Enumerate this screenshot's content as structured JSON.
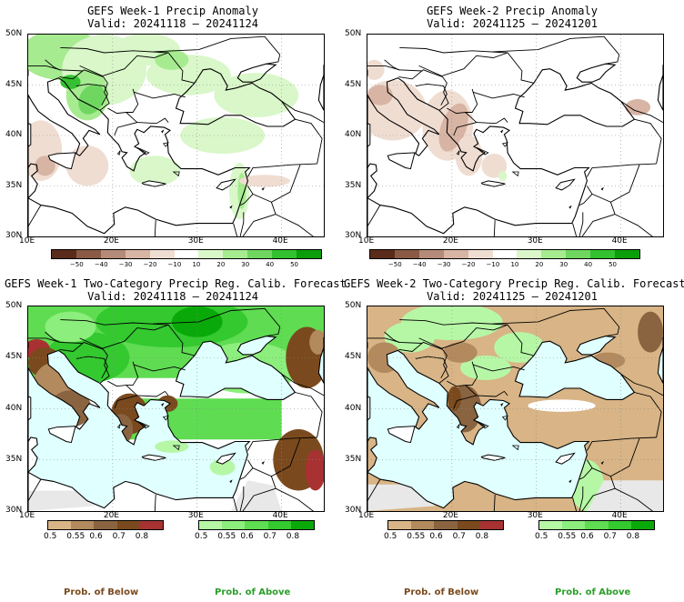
{
  "panels": [
    {
      "id": "p1",
      "title": "GEFS Week-1 Precip Anomaly",
      "valid": "Valid: 20241118 – 20241124",
      "kind": "anom"
    },
    {
      "id": "p2",
      "title": "GEFS Week-2 Precip Anomaly",
      "valid": "Valid: 20241125 – 20241201",
      "kind": "anom"
    },
    {
      "id": "p3",
      "title": "GEFS Week-1 Two-Category Precip Reg. Calib. Forecast",
      "valid": "Valid: 20241118 – 20241124",
      "kind": "prob"
    },
    {
      "id": "p4",
      "title": "GEFS Week-2 Two-Category Precip Reg. Calib. Forecast",
      "valid": "Valid: 20241125 – 20241201",
      "kind": "prob"
    }
  ],
  "axes": {
    "lat_labels": [
      "50N",
      "45N",
      "40N",
      "35N",
      "30N"
    ],
    "lon_labels": [
      "10E",
      "20E",
      "30E",
      "40E"
    ]
  },
  "anom_colorbar": {
    "labels": [
      "−50",
      "−40",
      "−30",
      "−20",
      "−10",
      "10",
      "20",
      "30",
      "40",
      "50"
    ],
    "colors": [
      "#5a2b1a",
      "#8a5a45",
      "#b48a78",
      "#d8b4a4",
      "#f0ddd2",
      "#ffffff",
      "#d9f7c9",
      "#a6eb90",
      "#6fd760",
      "#33c12f",
      "#0a9e0a"
    ]
  },
  "prob_below": {
    "labels": [
      "0.5",
      "0.55",
      "0.6",
      "0.7",
      "0.8"
    ],
    "colors": [
      "#d8b486",
      "#b28a5e",
      "#8a6440",
      "#7a4a1e",
      "#a83232"
    ]
  },
  "prob_above": {
    "labels": [
      "0.5",
      "0.55",
      "0.6",
      "0.7",
      "0.8"
    ],
    "colors": [
      "#b6f7a6",
      "#8cee7c",
      "#5fdc52",
      "#33c92f",
      "#0aa90a"
    ]
  },
  "legend": {
    "below": "Prob. of Below",
    "above": "Prob. of Above",
    "below_color": "#7a4a1e",
    "above_color": "#2aa02a"
  }
}
